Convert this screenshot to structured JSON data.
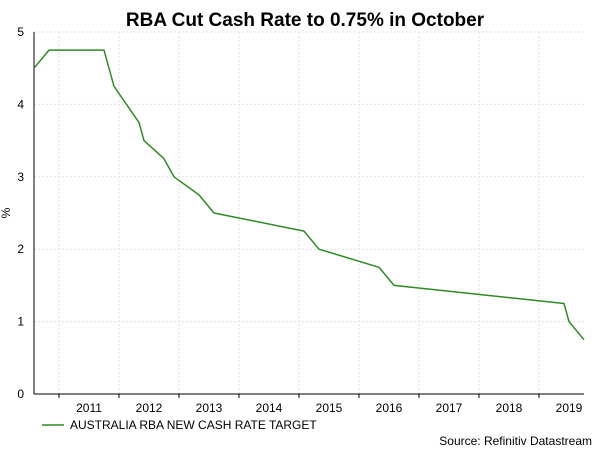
{
  "chart_data": {
    "type": "line",
    "title": "RBA Cut Cash Rate to 0.75% in October",
    "ylabel": "%",
    "xlabel": "",
    "ylim": [
      0,
      5
    ],
    "yticks": [
      0,
      1,
      2,
      3,
      4,
      5
    ],
    "xlim": [
      "2010-08",
      "2019-10"
    ],
    "xticks": [
      "2011",
      "2012",
      "2013",
      "2014",
      "2015",
      "2016",
      "2017",
      "2018",
      "2019"
    ],
    "grid": true,
    "legend_position": "bottom-left",
    "series": [
      {
        "name": "AUSTRALIA RBA NEW CASH RATE TARGET",
        "color": "#2e8b22",
        "x": [
          "2010-08",
          "2010-11",
          "2011-10",
          "2011-11",
          "2011-12",
          "2012-05",
          "2012-06",
          "2012-10",
          "2012-12",
          "2013-05",
          "2013-08",
          "2015-02",
          "2015-05",
          "2016-05",
          "2016-08",
          "2019-06",
          "2019-07",
          "2019-10"
        ],
        "y": [
          4.5,
          4.75,
          4.75,
          4.5,
          4.25,
          3.75,
          3.5,
          3.25,
          3.0,
          2.75,
          2.5,
          2.25,
          2.0,
          1.75,
          1.5,
          1.25,
          1.0,
          0.75
        ]
      }
    ],
    "source": "Source: Refinitiv Datastream"
  }
}
